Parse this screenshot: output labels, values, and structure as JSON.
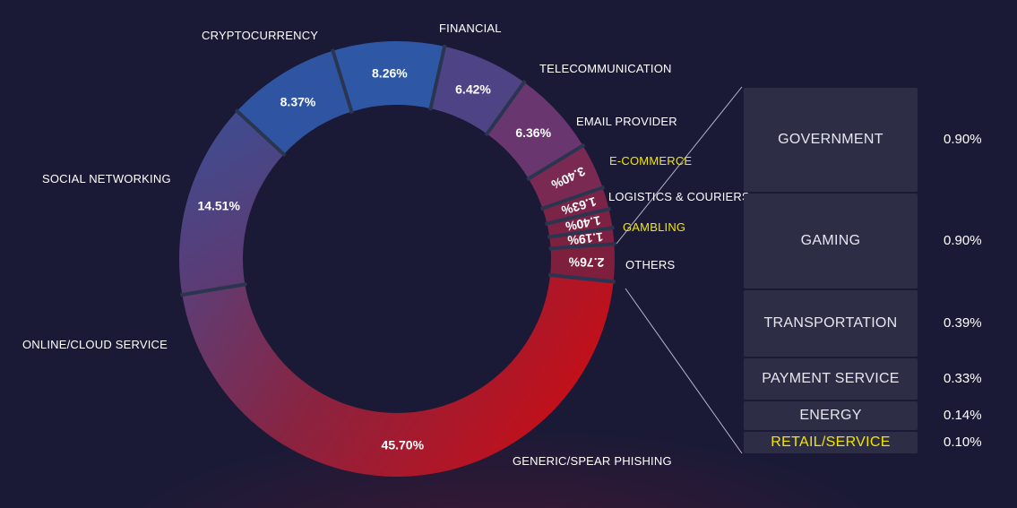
{
  "chart_data": {
    "type": "pie",
    "slices": [
      {
        "label": "GENERIC/SPEAR PHISHING",
        "value": 45.7,
        "value_label": "45.70%",
        "highlight": false
      },
      {
        "label": "ONLINE/CLOUD SERVICE",
        "value": 14.51,
        "value_label": "14.51%",
        "highlight": false
      },
      {
        "label": "SOCIAL NETWORKING",
        "value": 8.37,
        "value_label": "8.37%",
        "highlight": false
      },
      {
        "label": "CRYPTOCURRENCY",
        "value": 8.26,
        "value_label": "8.26%",
        "highlight": false
      },
      {
        "label": "FINANCIAL",
        "value": 6.42,
        "value_label": "6.42%",
        "highlight": false
      },
      {
        "label": "TELECOMMUNICATION",
        "value": 6.36,
        "value_label": "6.36%",
        "highlight": false
      },
      {
        "label": "EMAIL PROVIDER",
        "value": 3.4,
        "value_label": "3.40%",
        "highlight": false
      },
      {
        "label": "E-COMMERCE",
        "value": 1.63,
        "value_label": "1.63%",
        "highlight": true
      },
      {
        "label": "LOGISTICS & COURIERS",
        "value": 1.4,
        "value_label": "1.40%",
        "highlight": false
      },
      {
        "label": "GAMBLING",
        "value": 1.19,
        "value_label": "1.19%",
        "highlight": true
      },
      {
        "label": "OTHERS",
        "value": 2.76,
        "value_label": "2.76%",
        "highlight": false
      }
    ],
    "others_breakdown": [
      {
        "label": "GOVERNMENT",
        "value": 0.9,
        "value_label": "0.90%",
        "highlight": false
      },
      {
        "label": "GAMING",
        "value": 0.9,
        "value_label": "0.90%",
        "highlight": false
      },
      {
        "label": "TRANSPORTATION",
        "value": 0.39,
        "value_label": "0.39%",
        "highlight": false
      },
      {
        "label": "PAYMENT SERVICE",
        "value": 0.33,
        "value_label": "0.33%",
        "highlight": false
      },
      {
        "label": "ENERGY",
        "value": 0.14,
        "value_label": "0.14%",
        "highlight": false
      },
      {
        "label": "RETAIL/SERVICE",
        "value": 0.1,
        "value_label": "0.10%",
        "highlight": true
      }
    ],
    "colors": {
      "background": "#1b1a36",
      "blue": "#2d5aa8",
      "purple": "#5a3f7a",
      "maroon": "#7a2040",
      "red": "#c0101a",
      "separator": "#2a3550",
      "highlight_text": "#f2e600",
      "box": "#2d2e45"
    },
    "legend": "none"
  }
}
